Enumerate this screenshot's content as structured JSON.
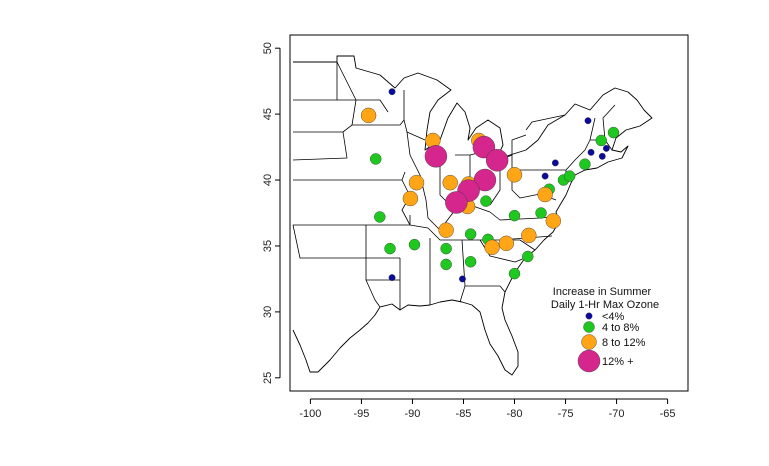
{
  "chart_data": {
    "type": "scatter",
    "title": "",
    "xlabel": "",
    "ylabel": "",
    "xlim": [
      -102,
      -63
    ],
    "ylim": [
      24,
      51
    ],
    "x_ticks": [
      -100,
      -95,
      -90,
      -85,
      -80,
      -75,
      -70,
      -65
    ],
    "y_ticks": [
      25,
      30,
      35,
      40,
      45,
      50
    ],
    "x_tick_labels": [
      "-100",
      "-95",
      "-90",
      "-85",
      "-80",
      "-75",
      "-70",
      "-65"
    ],
    "y_tick_labels": [
      "25",
      "30",
      "35",
      "40",
      "45",
      "50"
    ],
    "grid": false,
    "background": "map of eastern United States state boundaries",
    "legend": {
      "title_line1": "Increase in Summer",
      "title_line2": "Daily 1-Hr Max Ozone",
      "placement": "bottom-right",
      "entries": [
        {
          "label": "<4%",
          "category": "lt4",
          "color": "#0a0a9c"
        },
        {
          "label": "4 to 8%",
          "category": "4to8",
          "color": "#1ec81e"
        },
        {
          "label": "8 to 12%",
          "category": "8to12",
          "color": "#ffa516"
        },
        {
          "label": "12% +",
          "category": "12plus",
          "color": "#d4268c"
        }
      ]
    },
    "series": [
      {
        "category": "lt4",
        "points": [
          [
            -92,
            46.7
          ],
          [
            -76,
            41.3
          ],
          [
            -72.8,
            44.5
          ],
          [
            -72.5,
            42.1
          ],
          [
            -71,
            42.4
          ],
          [
            -71.4,
            41.8
          ],
          [
            -77,
            40.3
          ],
          [
            -92,
            32.6
          ],
          [
            -85.1,
            32.5
          ]
        ]
      },
      {
        "category": "4to8",
        "points": [
          [
            -93.6,
            41.6
          ],
          [
            -93.2,
            37.2
          ],
          [
            -92.2,
            34.8
          ],
          [
            -89.8,
            35.1
          ],
          [
            -86.7,
            34.8
          ],
          [
            -86.7,
            33.6
          ],
          [
            -84.3,
            33.8
          ],
          [
            -84.3,
            35.9
          ],
          [
            -82.6,
            35.5
          ],
          [
            -80,
            32.9
          ],
          [
            -78.7,
            34.2
          ],
          [
            -80,
            37.3
          ],
          [
            -82.8,
            38.4
          ],
          [
            -77.4,
            37.5
          ],
          [
            -76.6,
            39.3
          ],
          [
            -75.2,
            40
          ],
          [
            -74.6,
            40.3
          ],
          [
            -73.1,
            41.2
          ],
          [
            -71.5,
            43
          ],
          [
            -70.3,
            43.6
          ]
        ]
      },
      {
        "category": "8to12",
        "points": [
          [
            -94.3,
            44.9
          ],
          [
            -88,
            43
          ],
          [
            -89.6,
            39.8
          ],
          [
            -90.2,
            38.6
          ],
          [
            -86.3,
            39.8
          ],
          [
            -85.8,
            38.2
          ],
          [
            -84.6,
            38
          ],
          [
            -84.5,
            39.7
          ],
          [
            -86.7,
            36.2
          ],
          [
            -83.5,
            43
          ],
          [
            -80,
            40.4
          ],
          [
            -82.2,
            34.9
          ],
          [
            -80.8,
            35.2
          ],
          [
            -78.6,
            35.8
          ],
          [
            -77,
            38.9
          ],
          [
            -76.2,
            36.9
          ]
        ]
      },
      {
        "category": "12plus",
        "points": [
          [
            -87.7,
            41.8
          ],
          [
            -83,
            42.5
          ],
          [
            -81.7,
            41.5
          ],
          [
            -82.9,
            40
          ],
          [
            -84.5,
            39.2
          ],
          [
            -85.7,
            38.3
          ]
        ]
      }
    ]
  }
}
